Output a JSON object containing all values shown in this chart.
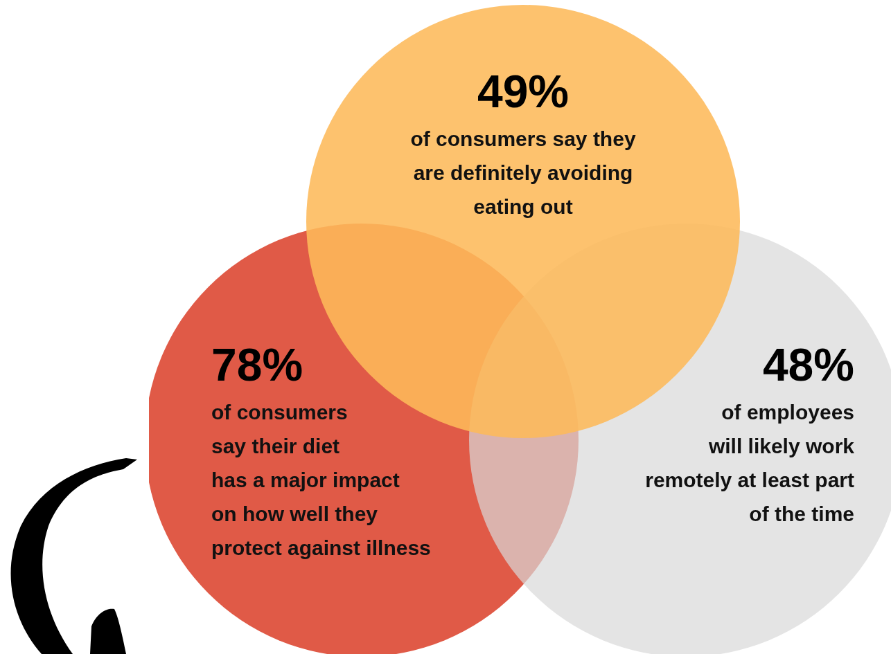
{
  "chart_data": {
    "type": "other",
    "categories": [
      "of consumers say they\nare definitely avoiding\neating out",
      "of consumers\nsay their diet\nhas a major impact\non how well they\nprotect against illness",
      "of employees\nwill likely work\nremotely at least part\nof the time"
    ],
    "values": [
      49,
      78,
      48
    ],
    "value_labels": [
      "49%",
      "78%",
      "48%"
    ],
    "colors": [
      "#fdba5a",
      "#e05a47",
      "#d9d9d9"
    ]
  }
}
